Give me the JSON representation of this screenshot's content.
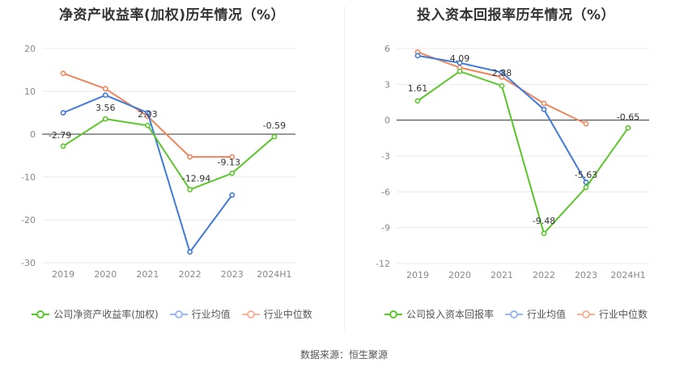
{
  "source_text": "数据来源：恒生聚源",
  "charts": [
    {
      "title": "净资产收益率(加权)历年情况（%）",
      "legend": [
        {
          "label": "公司净资产收益率(加权)",
          "color": "#5ac62a"
        },
        {
          "label": "行业均值",
          "color": "#3f7ad9"
        },
        {
          "label": "行业中位数",
          "color": "#f0845c"
        }
      ]
    },
    {
      "title": "投入资本回报率历年情况（%）",
      "legend": [
        {
          "label": "公司投入资本回报率",
          "color": "#5ac62a"
        },
        {
          "label": "行业均值",
          "color": "#3f7ad9"
        },
        {
          "label": "行业中位数",
          "color": "#f0845c"
        }
      ]
    }
  ],
  "chart_data": [
    {
      "type": "line",
      "title": "净资产收益率(加权)历年情况（%）",
      "categories": [
        "2019",
        "2020",
        "2021",
        "2022",
        "2023",
        "2024H1"
      ],
      "ylim": [
        -30,
        20
      ],
      "yticks": [
        "20",
        "10",
        "0",
        "-10",
        "-20",
        "-30"
      ],
      "grid": true,
      "legend_position": "bottom",
      "series": [
        {
          "name": "公司净资产收益率(加权)",
          "color": "#5ac62a",
          "values": [
            -2.79,
            3.56,
            2.03,
            -12.94,
            -9.13,
            -0.59
          ],
          "labels": [
            "-2.79",
            "3.56",
            "2.03",
            "-12.94",
            "-9.13",
            "-0.59"
          ]
        },
        {
          "name": "行业均值",
          "color": "#3f7ad9",
          "values": [
            5.0,
            9.1,
            5.0,
            -27.5,
            -14.2,
            null
          ]
        },
        {
          "name": "行业中位数",
          "color": "#f0845c",
          "values": [
            14.2,
            10.6,
            4.2,
            -5.3,
            -5.3,
            null
          ]
        }
      ]
    },
    {
      "type": "line",
      "title": "投入资本回报率历年情况（%）",
      "categories": [
        "2019",
        "2020",
        "2021",
        "2022",
        "2023",
        "2024H1"
      ],
      "ylim": [
        -12,
        6
      ],
      "yticks": [
        "6",
        "3",
        "0",
        "-3",
        "-6",
        "-9",
        "-12"
      ],
      "grid": true,
      "legend_position": "bottom",
      "series": [
        {
          "name": "公司投入资本回报率",
          "color": "#5ac62a",
          "values": [
            1.61,
            4.09,
            2.88,
            -9.48,
            -5.63,
            -0.65
          ],
          "labels": [
            "1.61",
            "4.09",
            "2.88",
            "-9.48",
            "-5.63",
            "-0.65"
          ]
        },
        {
          "name": "行业均值",
          "color": "#3f7ad9",
          "values": [
            5.4,
            4.8,
            4.0,
            0.9,
            -5.2,
            null
          ]
        },
        {
          "name": "行业中位数",
          "color": "#f0845c",
          "values": [
            5.7,
            4.4,
            3.6,
            1.4,
            -0.3,
            null
          ]
        }
      ]
    }
  ]
}
